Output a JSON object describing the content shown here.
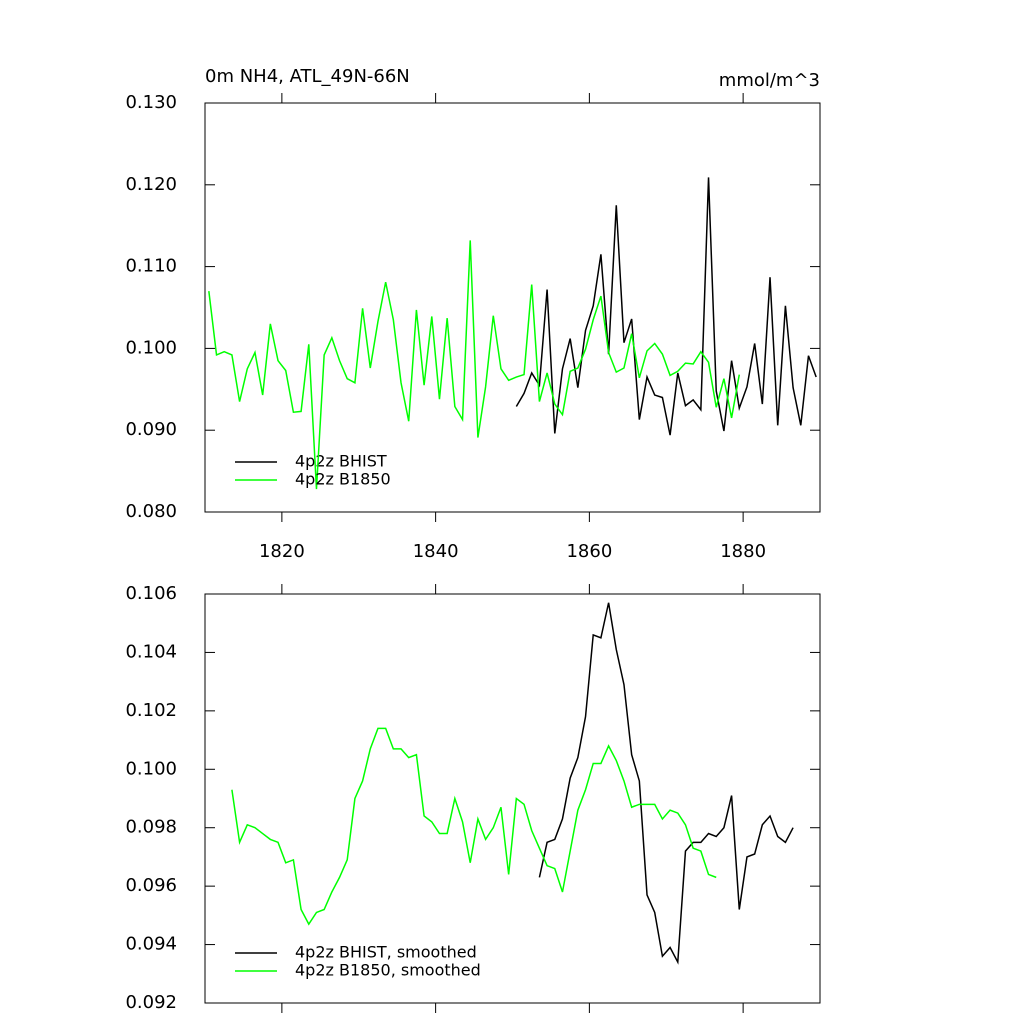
{
  "chart_data": [
    {
      "type": "line",
      "title": "0m NH4, ATL_49N-66N",
      "subtitle": "mmol/m^3",
      "xlim": [
        1810,
        1890
      ],
      "xticks": [
        1820,
        1840,
        1860,
        1880
      ],
      "ylim": [
        0.08,
        0.13
      ],
      "yticks": [
        {
          "value": 0.08,
          "label": "0.080"
        },
        {
          "value": 0.09,
          "label": "0.090"
        },
        {
          "value": 0.1,
          "label": "0.100"
        },
        {
          "value": 0.11,
          "label": "0.110"
        },
        {
          "value": 0.12,
          "label": "0.120"
        },
        {
          "value": 0.13,
          "label": "0.130"
        }
      ],
      "legend": "lower left",
      "series": [
        {
          "name": "4p2z BHIST",
          "color": "#000000",
          "x": [
            1850.5,
            1851.5,
            1852.5,
            1853.5,
            1854.5,
            1855.5,
            1856.5,
            1857.5,
            1858.5,
            1859.5,
            1860.5,
            1861.5,
            1862.5,
            1863.5,
            1864.5,
            1865.5,
            1866.5,
            1867.5,
            1868.5,
            1869.5,
            1870.5,
            1871.5,
            1872.5,
            1873.5,
            1874.5,
            1875.5,
            1876.5,
            1877.5,
            1878.5,
            1879.5,
            1880.5,
            1881.5,
            1882.5,
            1883.5,
            1884.5,
            1885.5,
            1886.5,
            1887.5,
            1888.5,
            1889.5
          ],
          "values": [
            0.0929,
            0.0945,
            0.097,
            0.0955,
            0.1072,
            0.0896,
            0.0975,
            0.1012,
            0.0952,
            0.1022,
            0.1052,
            0.1115,
            0.0993,
            0.1175,
            0.1007,
            0.1036,
            0.0913,
            0.0965,
            0.0943,
            0.094,
            0.0894,
            0.097,
            0.093,
            0.0937,
            0.0925,
            0.1209,
            0.0948,
            0.0899,
            0.0985,
            0.0927,
            0.0953,
            0.1006,
            0.0932,
            0.1087,
            0.0906,
            0.1052,
            0.0952,
            0.0906,
            0.0991,
            0.0965
          ]
        },
        {
          "name": "4p2z B1850",
          "color": "#00ff00",
          "x": [
            1810.5,
            1811.5,
            1812.5,
            1813.5,
            1814.5,
            1815.5,
            1816.5,
            1817.5,
            1818.5,
            1819.5,
            1820.5,
            1821.5,
            1822.5,
            1823.5,
            1824.5,
            1825.5,
            1826.5,
            1827.5,
            1828.5,
            1829.5,
            1830.5,
            1831.5,
            1832.5,
            1833.5,
            1834.5,
            1835.5,
            1836.5,
            1837.5,
            1838.5,
            1839.5,
            1840.5,
            1841.5,
            1842.5,
            1843.5,
            1844.5,
            1845.5,
            1846.5,
            1847.5,
            1848.5,
            1849.5,
            1850.5,
            1851.5,
            1852.5,
            1853.5,
            1854.5,
            1855.5,
            1856.5,
            1857.5,
            1858.5,
            1859.5,
            1860.5,
            1861.5,
            1862.5,
            1863.5,
            1864.5,
            1865.5,
            1866.5,
            1867.5,
            1868.5,
            1869.5,
            1870.5,
            1871.5,
            1872.5,
            1873.5,
            1874.5,
            1875.5,
            1876.5,
            1877.5,
            1878.5,
            1879.5
          ],
          "values": [
            0.107,
            0.0992,
            0.0996,
            0.0992,
            0.0935,
            0.0975,
            0.0995,
            0.0943,
            0.103,
            0.0985,
            0.0973,
            0.0922,
            0.0923,
            0.1005,
            0.0828,
            0.0992,
            0.1013,
            0.0985,
            0.0963,
            0.0958,
            0.1049,
            0.0976,
            0.1033,
            0.1081,
            0.1035,
            0.0958,
            0.0911,
            0.1047,
            0.0955,
            0.1039,
            0.0938,
            0.1037,
            0.0929,
            0.0913,
            0.1132,
            0.0891,
            0.0953,
            0.104,
            0.0975,
            0.0961,
            0.0965,
            0.0968,
            0.1078,
            0.0935,
            0.097,
            0.0932,
            0.0919,
            0.0972,
            0.0976,
            0.0999,
            0.1035,
            0.1064,
            0.0995,
            0.0971,
            0.0976,
            0.1018,
            0.0964,
            0.0997,
            0.1006,
            0.0993,
            0.0967,
            0.0972,
            0.0982,
            0.0981,
            0.0996,
            0.0983,
            0.0928,
            0.0963,
            0.0915,
            0.0968
          ]
        }
      ]
    },
    {
      "type": "line",
      "xlim": [
        1810,
        1890
      ],
      "xticks": [
        1820,
        1840,
        1860,
        1880
      ],
      "ylim": [
        0.092,
        0.106
      ],
      "yticks": [
        0.092,
        0.094,
        0.096,
        0.098,
        {
          "value": 0.1,
          "label": "0.100"
        },
        0.102,
        0.104,
        0.106
      ],
      "legend": "lower left",
      "series": [
        {
          "name": "4p2z BHIST, smoothed",
          "color": "#000000",
          "x": [
            1853.5,
            1854.5,
            1855.5,
            1856.5,
            1857.5,
            1858.5,
            1859.5,
            1860.5,
            1861.5,
            1862.5,
            1863.5,
            1864.5,
            1865.5,
            1866.5,
            1867.5,
            1868.5,
            1869.5,
            1870.5,
            1871.5,
            1872.5,
            1873.5,
            1874.5,
            1875.5,
            1876.5,
            1877.5,
            1878.5,
            1879.5,
            1880.5,
            1881.5,
            1882.5,
            1883.5,
            1884.5,
            1885.5,
            1886.5
          ],
          "values": [
            0.0963,
            0.0975,
            0.0976,
            0.0983,
            0.0997,
            0.1004,
            0.1018,
            0.1046,
            0.1045,
            0.1057,
            0.1041,
            0.1029,
            0.1005,
            0.0996,
            0.0957,
            0.0951,
            0.0936,
            0.0939,
            0.0934,
            0.0972,
            0.0975,
            0.0975,
            0.0978,
            0.0977,
            0.098,
            0.0991,
            0.0952,
            0.097,
            0.0971,
            0.0981,
            0.0984,
            0.0977,
            0.0975,
            0.098
          ]
        },
        {
          "name": "4p2z B1850, smoothed",
          "color": "#00ff00",
          "x": [
            1813.5,
            1814.5,
            1815.5,
            1816.5,
            1817.5,
            1818.5,
            1819.5,
            1820.5,
            1821.5,
            1822.5,
            1823.5,
            1824.5,
            1825.5,
            1826.5,
            1827.5,
            1828.5,
            1829.5,
            1830.5,
            1831.5,
            1832.5,
            1833.5,
            1834.5,
            1835.5,
            1836.5,
            1837.5,
            1838.5,
            1839.5,
            1840.5,
            1841.5,
            1842.5,
            1843.5,
            1844.5,
            1845.5,
            1846.5,
            1847.5,
            1848.5,
            1849.5,
            1850.5,
            1851.5,
            1852.5,
            1853.5,
            1854.5,
            1855.5,
            1856.5,
            1857.5,
            1858.5,
            1859.5,
            1860.5,
            1861.5,
            1862.5,
            1863.5,
            1864.5,
            1865.5,
            1866.5,
            1867.5,
            1868.5,
            1869.5,
            1870.5,
            1871.5,
            1872.5,
            1873.5,
            1874.5,
            1875.5,
            1876.5
          ],
          "values": [
            0.0993,
            0.0975,
            0.0981,
            0.098,
            0.0978,
            0.0976,
            0.0975,
            0.0968,
            0.0969,
            0.0952,
            0.0947,
            0.0951,
            0.0952,
            0.0958,
            0.0963,
            0.0969,
            0.099,
            0.0996,
            0.1007,
            0.1014,
            0.1014,
            0.1007,
            0.1007,
            0.1004,
            0.1005,
            0.0984,
            0.0982,
            0.0978,
            0.0978,
            0.099,
            0.0982,
            0.0968,
            0.0983,
            0.0976,
            0.098,
            0.0987,
            0.0964,
            0.099,
            0.0988,
            0.0979,
            0.0973,
            0.0967,
            0.0966,
            0.0958,
            0.0972,
            0.0986,
            0.0993,
            0.1002,
            0.1002,
            0.1008,
            0.1003,
            0.0996,
            0.0987,
            0.0988,
            0.0988,
            0.0988,
            0.0983,
            0.0986,
            0.0985,
            0.0981,
            0.0973,
            0.0972,
            0.0964,
            0.0963
          ]
        }
      ]
    }
  ]
}
